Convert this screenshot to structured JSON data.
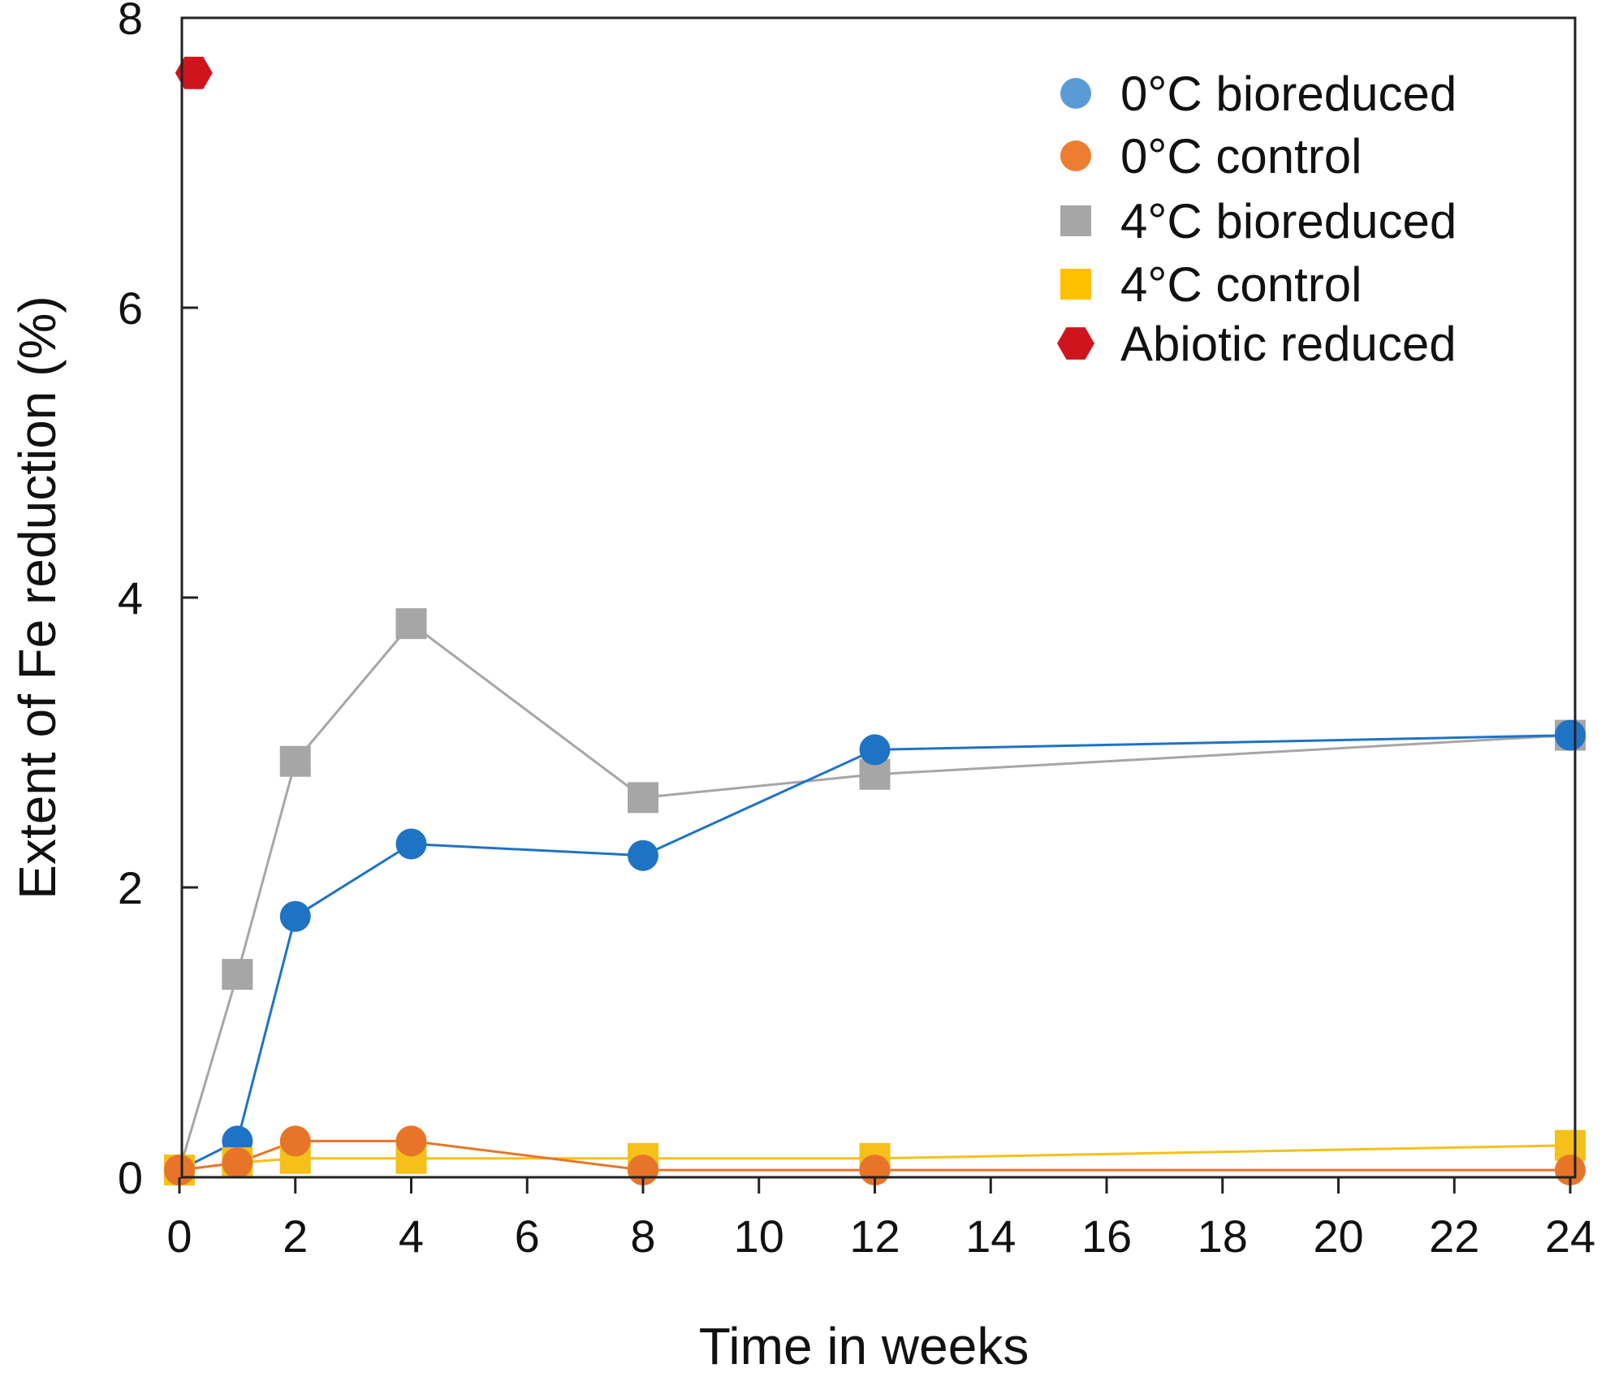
{
  "chart_data": {
    "type": "line",
    "xlabel": "Time in weeks",
    "ylabel": "Extent of Fe reduction (%)",
    "xlim": [
      0,
      24
    ],
    "ylim": [
      0,
      8
    ],
    "grid": false,
    "legend_position": "top-right",
    "x_ticks": [
      "0",
      "2",
      "4",
      "6",
      "8",
      "10",
      "12",
      "14",
      "16",
      "18",
      "20",
      "22",
      "24"
    ],
    "y_ticks": [
      "0",
      "2",
      "4",
      "6",
      "8"
    ],
    "x_scale_note": "axis tick labels are evenly spaced; data are plotted at their tick positions",
    "series": [
      {
        "name": "0°C bioreduced",
        "color": "#1f73c4",
        "legend_color": "#5b9bd5",
        "marker": "circle",
        "line": true,
        "x": [
          0,
          1,
          2,
          4,
          8,
          12,
          24
        ],
        "y": [
          0.05,
          0.25,
          1.8,
          2.3,
          2.22,
          2.95,
          3.05
        ]
      },
      {
        "name": "0°C control",
        "color": "#e8742a",
        "legend_color": "#ed7d31",
        "marker": "circle",
        "line": true,
        "x": [
          0,
          1,
          2,
          4,
          8,
          12,
          24
        ],
        "y": [
          0.05,
          0.1,
          0.25,
          0.25,
          0.05,
          0.05,
          0.05
        ]
      },
      {
        "name": "4°C bioreduced",
        "color": "#a6a6a6",
        "legend_color": "#a6a6a6",
        "marker": "square",
        "line": true,
        "x": [
          0,
          1,
          2,
          4,
          8,
          12,
          24
        ],
        "y": [
          0.05,
          1.4,
          2.87,
          3.82,
          2.62,
          2.78,
          3.05
        ]
      },
      {
        "name": "4°C control",
        "color": "#f5c01a",
        "legend_color": "#ffc000",
        "marker": "square",
        "line": true,
        "x": [
          0,
          1,
          2,
          4,
          8,
          12,
          24
        ],
        "y": [
          0.05,
          0.1,
          0.13,
          0.13,
          0.13,
          0.13,
          0.22
        ]
      },
      {
        "name": "Abiotic reduced",
        "color": "#d0141e",
        "legend_color": "#d0141e",
        "marker": "hexagon",
        "line": false,
        "x": [
          0.25
        ],
        "y": [
          7.62
        ]
      }
    ]
  }
}
